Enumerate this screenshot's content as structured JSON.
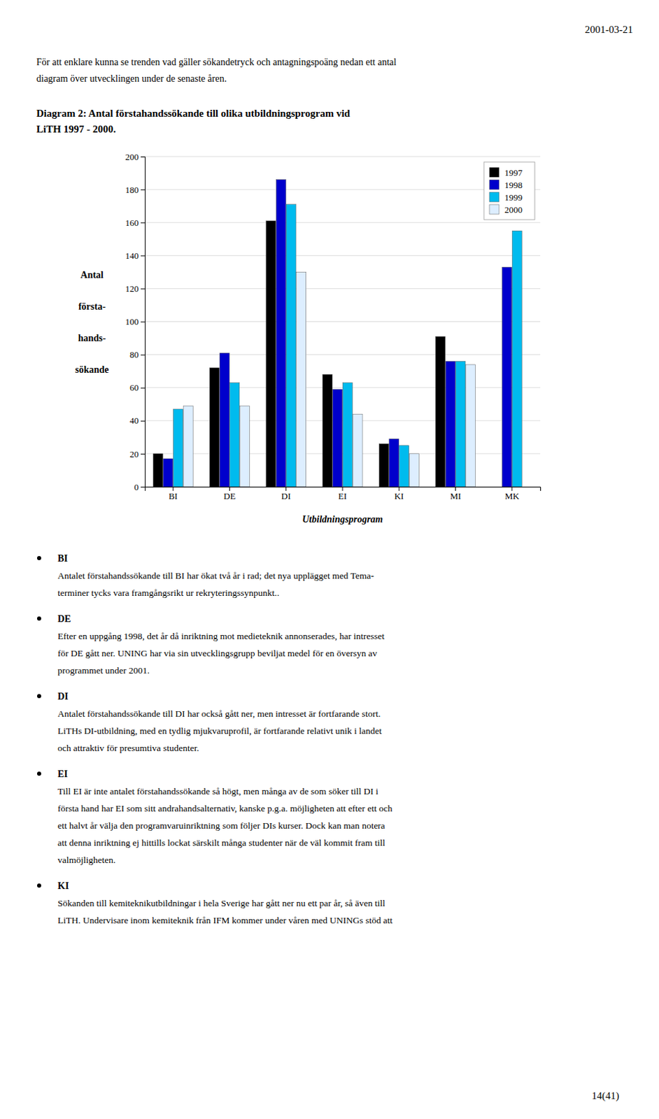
{
  "page_title": "2001-03-21",
  "header_text": [
    "För att enklare kunna se trenden vad gäller sökandetryck och antagningspoäng nedan ett antal",
    "diagram över utvecklingen under de senaste åren."
  ],
  "chart_data": {
    "type": "bar",
    "title": [
      "Diagram 2: Antal förstahandssökande till olika utbildningsprogram vid",
      "LiTH 1997 - 2000."
    ],
    "categories": [
      "BI",
      "DE",
      "DI",
      "EI",
      "KI",
      "MI",
      "MK"
    ],
    "series": [
      {
        "name": "1997",
        "color": "#000000",
        "values": [
          20,
          72,
          161,
          68,
          26,
          91,
          0
        ]
      },
      {
        "name": "1998",
        "color": "#0000CC",
        "values": [
          17,
          81,
          186,
          59,
          29,
          76,
          133
        ]
      },
      {
        "name": "1999",
        "color": "#00BBEE",
        "values": [
          47,
          63,
          171,
          63,
          25,
          76,
          155
        ]
      },
      {
        "name": "2000",
        "color": "#DDEEFF",
        "values": [
          49,
          49,
          130,
          44,
          20,
          74,
          0
        ]
      }
    ],
    "x_label": "Utbildningsprogram",
    "y_label": [
      "Antal",
      "första-",
      "hands-",
      "sökande"
    ],
    "ylim": [
      0,
      200
    ],
    "yticks": [
      0,
      20,
      40,
      60,
      80,
      100,
      120,
      140,
      160,
      180,
      200
    ],
    "grid": true,
    "legend": "upper right"
  },
  "bullet_blocks": [
    {
      "label": "BI",
      "lines": [
        "Antalet förstahandssökande till BI har ökat två år i rad; det nya upplägget med Tema-",
        "terminer tycks vara framgångsrikt ur rekryteringssynpunkt.."
      ]
    },
    {
      "label": "DE",
      "lines": [
        "Efter en uppgång 1998, det år då inriktning mot medieteknik annonserades, har intresset",
        "för DE gått ner. UNING har via sin utvecklingsgrupp beviljat medel för en översyn av",
        "programmet under 2001."
      ]
    },
    {
      "label": "DI",
      "lines": [
        "Antalet förstahandssökande till DI har också gått ner, men intresset är fortfarande stort.",
        "LiTHs DI-utbildning, med en tydlig mjukvaruprofil, är fortfarande relativt unik i landet",
        "och attraktiv för presumtiva studenter."
      ]
    },
    {
      "label": "EI",
      "lines": [
        "Till EI är inte antalet förstahandssökande så högt, men många av de som söker till DI i",
        "första hand har EI som sitt andrahandsalternativ, kanske p.g.a. möjligheten att efter ett och",
        "ett halvt år välja den programvaruinriktning som följer DIs kurser. Dock kan man notera",
        "att denna inriktning ej hittills lockat särskilt många studenter när de väl kommit fram till",
        "valmöjligheten."
      ]
    },
    {
      "label": "KI",
      "lines": [
        "Sökanden till kemiteknikutbildningar i hela Sverige har gått ner nu ett par år, så även till",
        "LiTH. Undervisare inom kemiteknik från IFM kommer under våren med UNINGs stöd att"
      ]
    }
  ],
  "page_number": "14(41)"
}
